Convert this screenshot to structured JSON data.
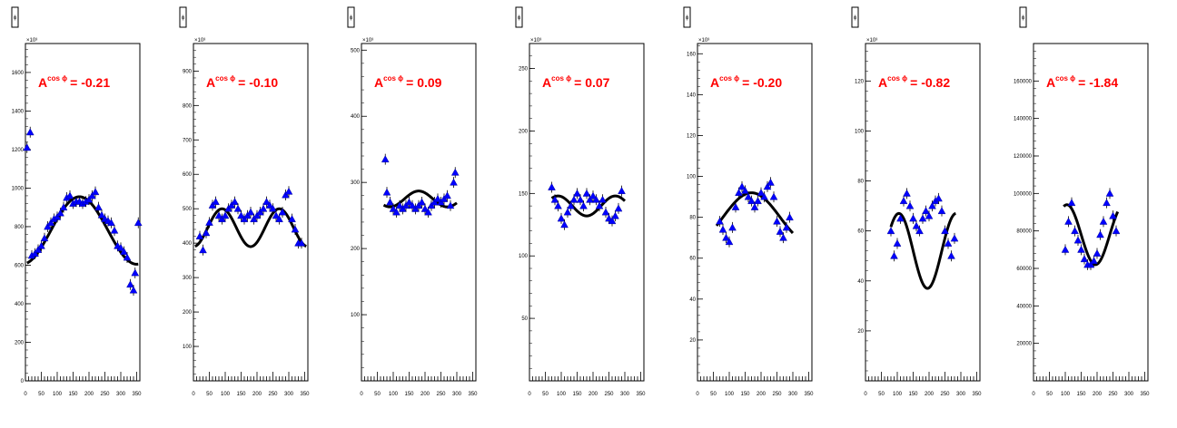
{
  "colors": {
    "marker": "#0000ff",
    "fit": "#000000",
    "label": "#ff0000",
    "axis": "#000000"
  },
  "label_prefix": "A",
  "label_sup": "cos ϕ",
  "legend_glyph": "ϕ",
  "chart_data": [
    {
      "type": "scatter",
      "multiplier": "×10³",
      "asymmetry": "= -0.21",
      "xlim": [
        0,
        360
      ],
      "ylim": [
        0,
        1750
      ],
      "xticks": [
        0,
        50,
        100,
        150,
        200,
        250,
        300,
        350
      ],
      "yticks": [
        0,
        200,
        400,
        600,
        800,
        1000,
        1200,
        1400,
        1600
      ],
      "points": [
        [
          5,
          1210
        ],
        [
          15,
          1290
        ],
        [
          20,
          650
        ],
        [
          30,
          660
        ],
        [
          40,
          680
        ],
        [
          50,
          700
        ],
        [
          60,
          740
        ],
        [
          70,
          800
        ],
        [
          80,
          820
        ],
        [
          90,
          840
        ],
        [
          100,
          850
        ],
        [
          110,
          870
        ],
        [
          120,
          900
        ],
        [
          130,
          950
        ],
        [
          140,
          960
        ],
        [
          150,
          920
        ],
        [
          160,
          930
        ],
        [
          170,
          930
        ],
        [
          180,
          920
        ],
        [
          190,
          930
        ],
        [
          200,
          940
        ],
        [
          210,
          960
        ],
        [
          220,
          980
        ],
        [
          230,
          900
        ],
        [
          240,
          860
        ],
        [
          250,
          840
        ],
        [
          260,
          830
        ],
        [
          270,
          820
        ],
        [
          280,
          780
        ],
        [
          290,
          700
        ],
        [
          300,
          690
        ],
        [
          310,
          670
        ],
        [
          320,
          640
        ],
        [
          330,
          500
        ],
        [
          340,
          470
        ],
        [
          345,
          560
        ],
        [
          355,
          820
        ]
      ],
      "fit": {
        "offset": 780,
        "amp": -175,
        "freq": 1,
        "phase": 10,
        "xmin": 5,
        "xmax": 355
      }
    },
    {
      "type": "scatter",
      "multiplier": "×10³",
      "asymmetry": "= -0.10",
      "xlim": [
        0,
        360
      ],
      "ylim": [
        0,
        980
      ],
      "xticks": [
        0,
        50,
        100,
        150,
        200,
        250,
        300,
        350
      ],
      "yticks": [
        100,
        200,
        300,
        400,
        500,
        600,
        700,
        800,
        900
      ],
      "points": [
        [
          20,
          420
        ],
        [
          30,
          380
        ],
        [
          40,
          430
        ],
        [
          50,
          460
        ],
        [
          60,
          510
        ],
        [
          70,
          520
        ],
        [
          80,
          480
        ],
        [
          90,
          470
        ],
        [
          100,
          480
        ],
        [
          110,
          500
        ],
        [
          120,
          510
        ],
        [
          130,
          520
        ],
        [
          140,
          500
        ],
        [
          150,
          480
        ],
        [
          160,
          470
        ],
        [
          170,
          480
        ],
        [
          180,
          490
        ],
        [
          190,
          470
        ],
        [
          200,
          480
        ],
        [
          210,
          490
        ],
        [
          220,
          500
        ],
        [
          230,
          520
        ],
        [
          240,
          510
        ],
        [
          250,
          500
        ],
        [
          260,
          480
        ],
        [
          270,
          470
        ],
        [
          280,
          490
        ],
        [
          290,
          540
        ],
        [
          300,
          550
        ],
        [
          310,
          470
        ],
        [
          320,
          440
        ],
        [
          330,
          400
        ],
        [
          340,
          400
        ]
      ],
      "fit": {
        "offset": 445,
        "amp": -55,
        "freq": 2,
        "phase": 0,
        "xmin": 5,
        "xmax": 355
      }
    },
    {
      "type": "scatter",
      "multiplier": "×10³",
      "asymmetry": "= 0.09",
      "xlim": [
        0,
        360
      ],
      "ylim": [
        0,
        510
      ],
      "xticks": [
        0,
        50,
        100,
        150,
        200,
        250,
        300,
        350
      ],
      "yticks": [
        100,
        200,
        300,
        400,
        500
      ],
      "points": [
        [
          75,
          335
        ],
        [
          80,
          285
        ],
        [
          90,
          270
        ],
        [
          100,
          260
        ],
        [
          110,
          255
        ],
        [
          120,
          265
        ],
        [
          130,
          260
        ],
        [
          140,
          265
        ],
        [
          150,
          270
        ],
        [
          160,
          265
        ],
        [
          170,
          260
        ],
        [
          180,
          265
        ],
        [
          190,
          270
        ],
        [
          200,
          260
        ],
        [
          210,
          255
        ],
        [
          220,
          265
        ],
        [
          230,
          270
        ],
        [
          240,
          275
        ],
        [
          250,
          270
        ],
        [
          260,
          275
        ],
        [
          270,
          280
        ],
        [
          280,
          265
        ],
        [
          290,
          300
        ],
        [
          295,
          315
        ]
      ],
      "fit": {
        "offset": 275,
        "amp": 12,
        "freq": 2,
        "phase": 0,
        "xmin": 70,
        "xmax": 300
      }
    },
    {
      "type": "scatter",
      "multiplier": "×10³",
      "asymmetry": "= 0.07",
      "xlim": [
        0,
        360
      ],
      "ylim": [
        0,
        270
      ],
      "xticks": [
        0,
        50,
        100,
        150,
        200,
        250,
        300,
        350
      ],
      "yticks": [
        50,
        100,
        150,
        200,
        250
      ],
      "points": [
        [
          70,
          155
        ],
        [
          80,
          145
        ],
        [
          90,
          140
        ],
        [
          100,
          130
        ],
        [
          110,
          125
        ],
        [
          120,
          135
        ],
        [
          130,
          140
        ],
        [
          140,
          145
        ],
        [
          150,
          150
        ],
        [
          160,
          145
        ],
        [
          170,
          140
        ],
        [
          180,
          150
        ],
        [
          190,
          145
        ],
        [
          200,
          148
        ],
        [
          210,
          145
        ],
        [
          220,
          140
        ],
        [
          230,
          145
        ],
        [
          240,
          135
        ],
        [
          250,
          130
        ],
        [
          260,
          128
        ],
        [
          270,
          132
        ],
        [
          280,
          138
        ],
        [
          290,
          152
        ]
      ],
      "fit": {
        "offset": 140,
        "amp": -8,
        "freq": 2,
        "phase": 0,
        "xmin": 70,
        "xmax": 300
      }
    },
    {
      "type": "scatter",
      "multiplier": "×10³",
      "asymmetry": "= -0.20",
      "xlim": [
        0,
        360
      ],
      "ylim": [
        0,
        165
      ],
      "xticks": [
        0,
        50,
        100,
        150,
        200,
        250,
        300,
        350
      ],
      "yticks": [
        20,
        40,
        60,
        80,
        100,
        120,
        140,
        160
      ],
      "points": [
        [
          70,
          78
        ],
        [
          80,
          74
        ],
        [
          90,
          70
        ],
        [
          100,
          68
        ],
        [
          110,
          75
        ],
        [
          120,
          85
        ],
        [
          130,
          92
        ],
        [
          140,
          95
        ],
        [
          150,
          93
        ],
        [
          160,
          90
        ],
        [
          170,
          88
        ],
        [
          180,
          85
        ],
        [
          190,
          88
        ],
        [
          200,
          92
        ],
        [
          210,
          90
        ],
        [
          220,
          95
        ],
        [
          230,
          97
        ],
        [
          240,
          90
        ],
        [
          250,
          78
        ],
        [
          260,
          73
        ],
        [
          270,
          70
        ],
        [
          280,
          75
        ],
        [
          290,
          80
        ]
      ],
      "fit": {
        "offset": 80,
        "amp": -12,
        "freq": 1,
        "phase": 10,
        "xmin": 60,
        "xmax": 300
      }
    },
    {
      "type": "scatter",
      "multiplier": "×10³",
      "asymmetry": "= -0.82",
      "xlim": [
        0,
        360
      ],
      "ylim": [
        0,
        135
      ],
      "xticks": [
        0,
        50,
        100,
        150,
        200,
        250,
        300,
        350
      ],
      "yticks": [
        20,
        40,
        60,
        80,
        100,
        120
      ],
      "points": [
        [
          80,
          60
        ],
        [
          90,
          50
        ],
        [
          100,
          55
        ],
        [
          110,
          65
        ],
        [
          120,
          72
        ],
        [
          130,
          75
        ],
        [
          140,
          70
        ],
        [
          150,
          65
        ],
        [
          160,
          62
        ],
        [
          170,
          60
        ],
        [
          180,
          65
        ],
        [
          190,
          68
        ],
        [
          200,
          66
        ],
        [
          210,
          70
        ],
        [
          220,
          72
        ],
        [
          230,
          73
        ],
        [
          240,
          68
        ],
        [
          250,
          60
        ],
        [
          260,
          55
        ],
        [
          270,
          50
        ],
        [
          280,
          57
        ]
      ],
      "fit": {
        "offset": 52,
        "amp": -15,
        "freq": 2,
        "phase": -15,
        "xmin": 80,
        "xmax": 285
      }
    },
    {
      "type": "scatter",
      "multiplier": "",
      "asymmetry": "= -1.84",
      "xlim": [
        0,
        360
      ],
      "ylim": [
        0,
        180000
      ],
      "xticks": [
        0,
        50,
        100,
        150,
        200,
        250,
        300,
        350
      ],
      "yticks": [
        20000,
        40000,
        60000,
        80000,
        100000,
        120000,
        140000,
        160000
      ],
      "yticklabels": [
        "20000",
        "40000",
        "60000",
        "80000",
        "100000",
        "120000",
        "140000",
        "160000"
      ],
      "points": [
        [
          100,
          70000
        ],
        [
          110,
          85000
        ],
        [
          120,
          95000
        ],
        [
          130,
          80000
        ],
        [
          140,
          75000
        ],
        [
          150,
          70000
        ],
        [
          160,
          65000
        ],
        [
          170,
          62000
        ],
        [
          180,
          62000
        ],
        [
          190,
          64000
        ],
        [
          200,
          68000
        ],
        [
          210,
          78000
        ],
        [
          220,
          85000
        ],
        [
          230,
          95000
        ],
        [
          240,
          100000
        ],
        [
          250,
          88000
        ],
        [
          260,
          80000
        ]
      ],
      "fit": {
        "offset": 78000,
        "amp": -16000,
        "freq": 2,
        "phase": -15,
        "xmin": 95,
        "xmax": 265
      }
    }
  ]
}
